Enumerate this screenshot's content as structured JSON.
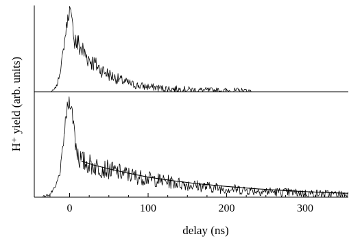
{
  "chart_data": {
    "type": "line",
    "xlabel": "delay (ns)",
    "ylabel": "H⁺ yield (arb. units)",
    "xlim": [
      -45,
      355
    ],
    "xticks": [
      0,
      100,
      200,
      300
    ],
    "xtick_labels": [
      "0",
      "100",
      "200",
      "300"
    ],
    "grid": false,
    "panels": [
      {
        "position": "top",
        "ylim": [
          0,
          1.05
        ],
        "series": [
          {
            "kind": "measured",
            "x": [
              -24,
              -20,
              -16,
              -12,
              -8,
              -5,
              -3,
              -1,
              0,
              1,
              2,
              4,
              6,
              10,
              15,
              20,
              30,
              40,
              50,
              60,
              70,
              80,
              90,
              100,
              120,
              140,
              160,
              180,
              200,
              220,
              232
            ],
            "y": [
              0.0,
              0.02,
              0.08,
              0.25,
              0.5,
              0.72,
              0.86,
              0.95,
              1.0,
              0.97,
              0.9,
              0.8,
              0.66,
              0.58,
              0.52,
              0.45,
              0.35,
              0.27,
              0.21,
              0.16,
              0.12,
              0.09,
              0.07,
              0.06,
              0.04,
              0.03,
              0.02,
              0.015,
              0.01,
              0.01,
              0.01
            ]
          }
        ]
      },
      {
        "position": "bottom",
        "ylim": [
          0,
          1.05
        ],
        "series": [
          {
            "kind": "measured",
            "x": [
              -35,
              -25,
              -18,
              -12,
              -8,
              -5,
              -3,
              -1,
              0,
              1,
              2,
              4,
              6,
              8,
              10,
              12,
              15,
              20,
              40,
              60,
              80,
              100,
              140,
              180,
              220,
              260,
              300,
              340,
              355
            ],
            "y": [
              0.0,
              0.03,
              0.1,
              0.26,
              0.55,
              0.78,
              0.9,
              0.97,
              1.0,
              0.98,
              0.93,
              0.82,
              0.68,
              0.56,
              0.47,
              0.41,
              0.37,
              0.35,
              0.3,
              0.26,
              0.22,
              0.19,
              0.14,
              0.1,
              0.075,
              0.055,
              0.04,
              0.03,
              0.03
            ]
          },
          {
            "kind": "fit",
            "x": [
              15,
              30,
              50,
              75,
              100,
              130,
              160,
              200,
              240,
              280,
              320,
              355
            ],
            "y": [
              0.37,
              0.33,
              0.29,
              0.245,
              0.205,
              0.17,
              0.14,
              0.11,
              0.085,
              0.065,
              0.05,
              0.04
            ]
          }
        ]
      }
    ]
  }
}
